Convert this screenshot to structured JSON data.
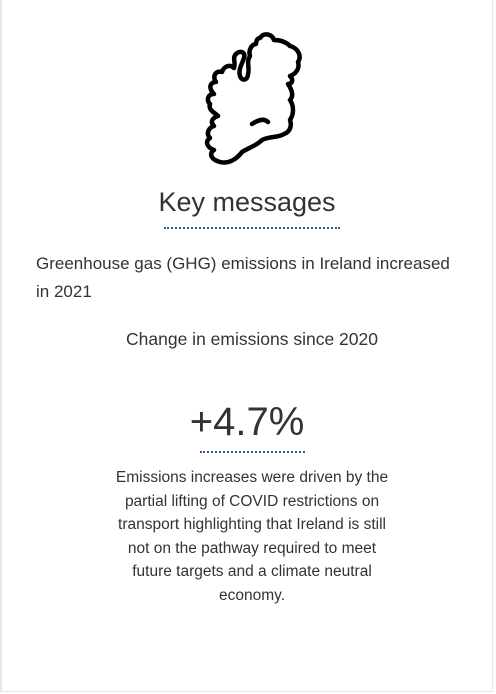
{
  "icon": "ireland-map-icon",
  "key_messages": {
    "heading": "Key messages",
    "summary": "Greenhouse gas (GHG) emissions in Ireland increased in 2021"
  },
  "stat": {
    "label": "Change in emissions since 2020",
    "value": "+4.7%",
    "description": "Emissions increases were driven by the partial lifting of COVID restrictions on transport highlighting that Ireland is still not on the pathway required to meet future targets and a climate neutral economy."
  },
  "colors": {
    "text": "#333333",
    "underline": "#2b5d97",
    "border": "#e6e6e6"
  }
}
